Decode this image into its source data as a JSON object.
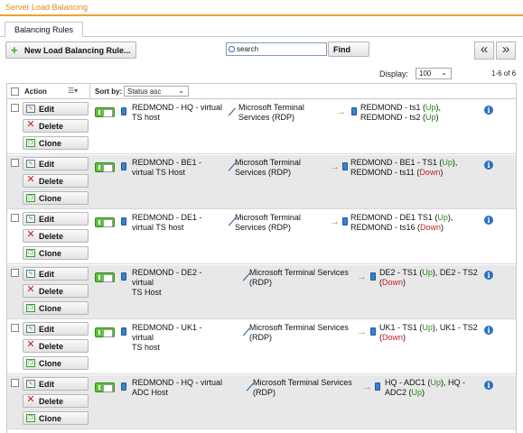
{
  "window": {
    "title": "Server Load Balancing"
  },
  "tabs": [
    {
      "label": "Balancing Rules"
    }
  ],
  "toolbar": {
    "new_rule_label": "New Load Balancing Rule...",
    "search_placeholder": "search",
    "find_label": "Find",
    "prev_label": "«",
    "next_label": "»"
  },
  "display": {
    "label": "Display:",
    "value": "100",
    "count_text": "1-6 of 6"
  },
  "table": {
    "action_header": "Action",
    "sort_label": "Sort by:",
    "sort_value": "Status asc",
    "edit_label": "Edit",
    "delete_label": "Delete",
    "clone_label": "Clone",
    "rows": [
      {
        "host_line1": "REDMOND - HQ - virtual",
        "host_line2": "TS host",
        "service_line1": "Microsoft Terminal",
        "service_line2": "Services (RDP)",
        "servers": [
          {
            "name": "REDMOND - ts1",
            "status": "Up",
            "sep": ","
          },
          {
            "name": "REDMOND - ts2",
            "status": "Up",
            "sep": ""
          }
        ]
      },
      {
        "host_line1": "REDMOND - BE1 -",
        "host_line2": "virtual TS Host",
        "service_line1": "Microsoft Terminal",
        "service_line2": "Services (RDP)",
        "servers": [
          {
            "name": "REDMOND - BE1 - TS1",
            "status": "Up",
            "sep": ","
          },
          {
            "name": "REDMOND - ts11",
            "status": "Down",
            "sep": ""
          }
        ]
      },
      {
        "host_line1": "REDMOND - DE1 -",
        "host_line2": "virtual TS host",
        "service_line1": "Microsoft Terminal",
        "service_line2": "Services (RDP)",
        "servers": [
          {
            "name": "REDMOND - DE1 TS1",
            "status": "Up",
            "sep": ","
          },
          {
            "name": "REDMOND - ts16",
            "status": "Down",
            "sep": ""
          }
        ]
      },
      {
        "host_line1": "REDMOND - DE2 - virtual",
        "host_line2": "TS Host",
        "service_line1": "Microsoft Terminal Services",
        "service_line2": "(RDP)",
        "servers_line1": "DE2 - TS1",
        "servers_status1": "Up",
        "servers_mid": ", DE2 - TS2",
        "servers_status2": "Down"
      },
      {
        "host_line1": "REDMOND - UK1 - virtual",
        "host_line2": "TS host",
        "service_line1": "Microsoft Terminal Services",
        "service_line2": "(RDP)",
        "servers_line1": "UK1 - TS1",
        "servers_status1": "Up",
        "servers_mid": ", UK1 - TS2",
        "servers_status2": "Down"
      },
      {
        "host_line1": "REDMOND - HQ - virtual",
        "host_line2": "ADC Host",
        "service_line1": "Microsoft Terminal Services",
        "service_line2": "(RDP)",
        "servers_line1": "HQ - ADC1",
        "servers_status1": "Up",
        "servers_mid": ", HQ -",
        "servers_line2": "ADC2",
        "servers_status2": "Up"
      }
    ]
  }
}
